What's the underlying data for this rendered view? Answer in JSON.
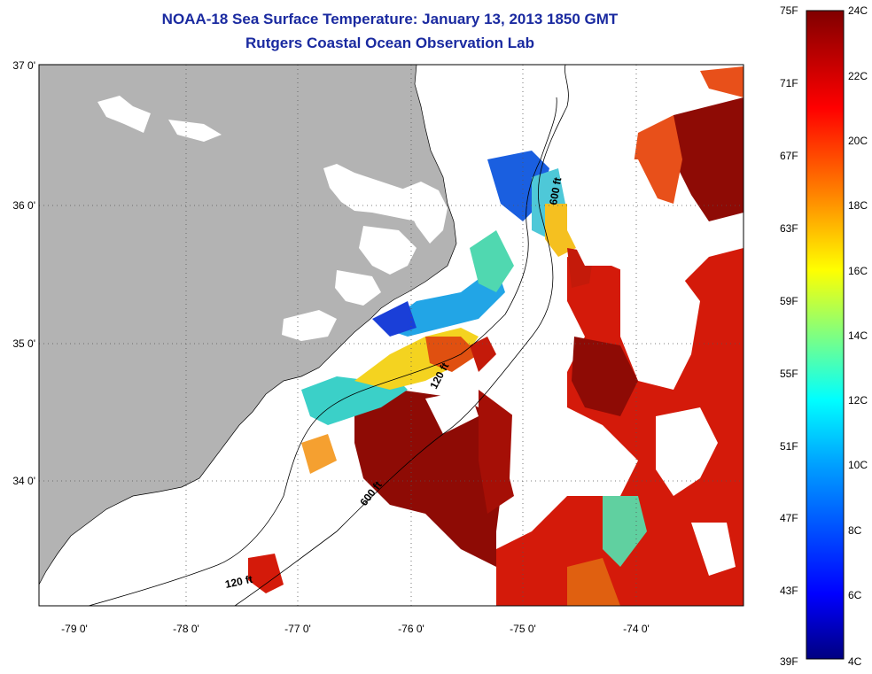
{
  "title": "NOAA-18 Sea Surface Temperature:  January 13, 2013 1850 GMT",
  "subtitle": "Rutgers Coastal Ocean Observation Lab",
  "map": {
    "lon_ticks": [
      "-79 0'",
      "-78 0'",
      "-77 0'",
      "-76 0'",
      "-75 0'",
      "-74 0'"
    ],
    "lat_ticks": [
      "37 0'",
      "36 0'",
      "35 0'",
      "34 0'"
    ],
    "contour_labels": [
      "600 ft",
      "120 ft",
      "600 ft",
      "120 ft"
    ],
    "land_color": "#b3b3b3"
  },
  "colorbar": {
    "fahrenheit": [
      "75F",
      "71F",
      "67F",
      "63F",
      "59F",
      "55F",
      "51F",
      "47F",
      "43F",
      "39F"
    ],
    "celsius": [
      "24C",
      "22C",
      "20C",
      "18C",
      "16C",
      "14C",
      "12C",
      "10C",
      "8C",
      "6C",
      "4C"
    ],
    "colors": [
      "#000080",
      "#0000ff",
      "#00a0ff",
      "#00ffff",
      "#80ff80",
      "#ffff00",
      "#ff8000",
      "#ff0000",
      "#800000"
    ]
  }
}
